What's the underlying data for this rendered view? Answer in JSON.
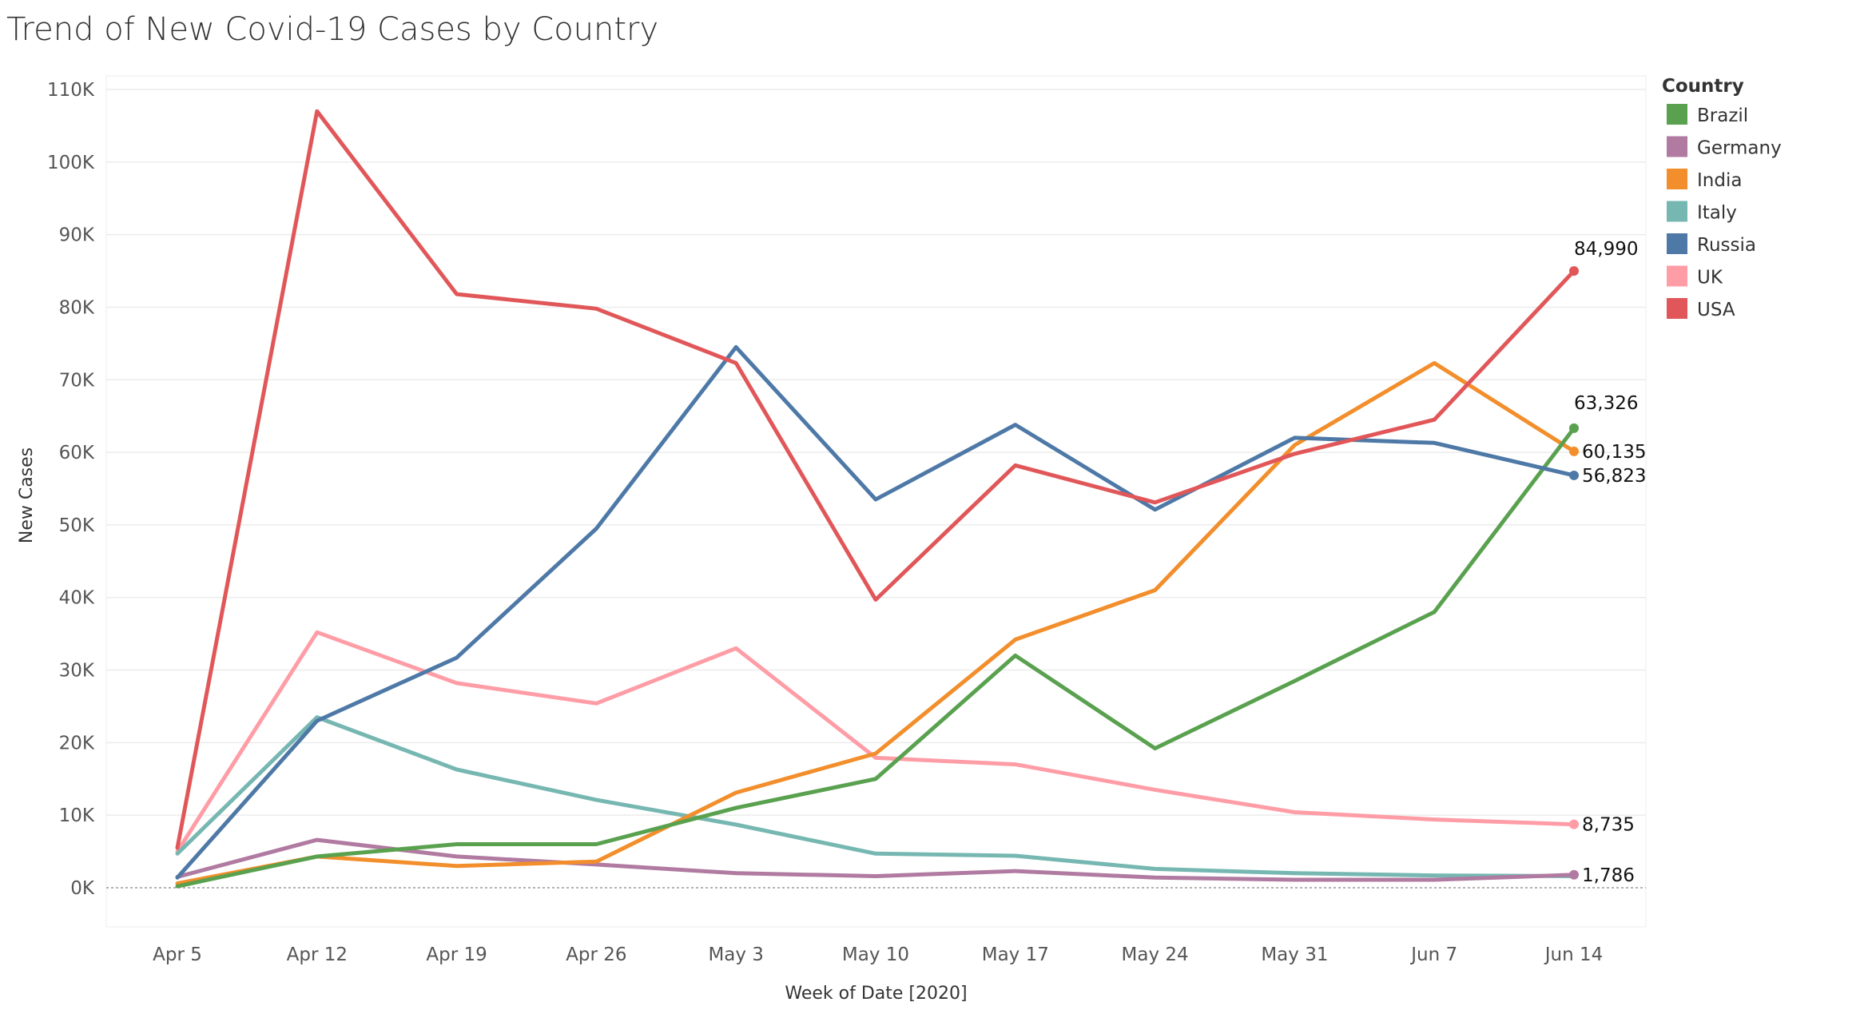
{
  "chart_data": {
    "type": "line",
    "title": "Trend of New Covid-19 Cases by Country",
    "xlabel": "Week of Date [2020]",
    "ylabel": "New Cases",
    "categories": [
      "Apr 5",
      "Apr 12",
      "Apr 19",
      "Apr 26",
      "May 3",
      "May 10",
      "May 17",
      "May 24",
      "May 31",
      "Jun 7",
      "Jun 14"
    ],
    "ylim": [
      -5000,
      110000
    ],
    "yticks": [
      0,
      10000,
      20000,
      30000,
      40000,
      50000,
      60000,
      70000,
      80000,
      90000,
      100000,
      110000
    ],
    "ytick_labels": [
      "0K",
      "10K",
      "20K",
      "30K",
      "40K",
      "50K",
      "60K",
      "70K",
      "80K",
      "90K",
      "100K",
      "110K"
    ],
    "grid": true,
    "legend": {
      "title": "Country",
      "placement": "right"
    },
    "series": [
      {
        "name": "Brazil",
        "color": "#59a14f",
        "end_label": "63,326",
        "values": [
          200,
          4300,
          6000,
          6000,
          11000,
          15000,
          32000,
          19200,
          28500,
          38000,
          63326
        ]
      },
      {
        "name": "Germany",
        "color": "#b07aa1",
        "end_label": "",
        "values": [
          1500,
          6600,
          4300,
          3200,
          2000,
          1600,
          2300,
          1400,
          1100,
          1100,
          1786
        ]
      },
      {
        "name": "India",
        "color": "#f28e2b",
        "end_label": "60,135",
        "values": [
          600,
          4300,
          3000,
          3600,
          13100,
          18500,
          34200,
          41000,
          61000,
          72300,
          60135
        ]
      },
      {
        "name": "Italy",
        "color": "#76b7b2",
        "end_label": "",
        "values": [
          4700,
          23500,
          16300,
          12100,
          8700,
          4700,
          4400,
          2600,
          2000,
          1700,
          1600
        ]
      },
      {
        "name": "Russia",
        "color": "#4e79a7",
        "end_label": "56,823",
        "values": [
          1400,
          23000,
          31700,
          49500,
          74500,
          53500,
          63800,
          52100,
          62000,
          61300,
          56823
        ]
      },
      {
        "name": "UK",
        "color": "#ff9da7",
        "end_label": "8,735",
        "values": [
          5000,
          35200,
          28200,
          25400,
          33000,
          17900,
          17000,
          13500,
          10400,
          9400,
          8735
        ]
      },
      {
        "name": "USA",
        "color": "#e15759",
        "end_label": "84,990",
        "values": [
          5500,
          107000,
          81800,
          79800,
          72300,
          39700,
          58200,
          53100,
          59800,
          64500,
          84990
        ]
      }
    ],
    "extra_end_labels": [
      {
        "text": "1,786",
        "series": "Germany"
      }
    ]
  }
}
